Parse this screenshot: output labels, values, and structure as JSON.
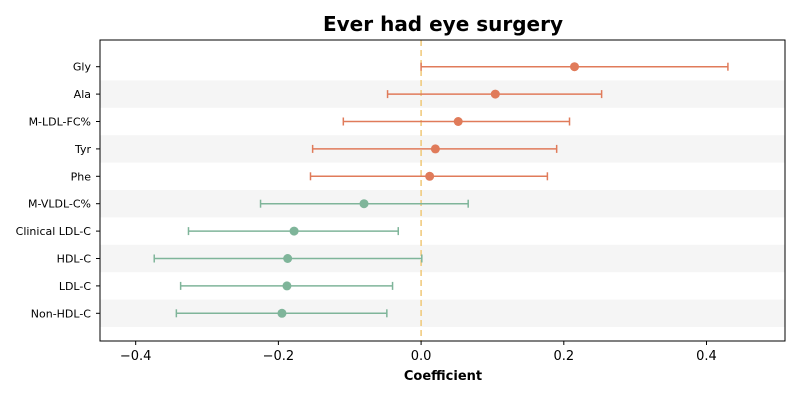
{
  "chart_data": {
    "type": "scatter",
    "title": "Ever had eye surgery",
    "xlabel": "Coefficient",
    "ylabel": "",
    "xlim": [
      -0.45,
      0.51
    ],
    "xticks": [
      -0.4,
      -0.2,
      0.0,
      0.2,
      0.4
    ],
    "xtick_labels": [
      "−0.4",
      "−0.2",
      "0.0",
      "0.2",
      "0.4"
    ],
    "reference_line": {
      "x": 0.0,
      "style": "dashed",
      "color": "#f0c878"
    },
    "alternating_row_shading": true,
    "colors": {
      "positive": "#e07b5a",
      "negative": "#7fb59a",
      "row_shade": "#f5f5f5"
    },
    "points": [
      {
        "label": "Gly",
        "coef": 0.215,
        "lower": 0.0,
        "upper": 0.43
      },
      {
        "label": "Ala",
        "coef": 0.104,
        "lower": -0.047,
        "upper": 0.253
      },
      {
        "label": "M-LDL-FC%",
        "coef": 0.052,
        "lower": -0.109,
        "upper": 0.208
      },
      {
        "label": "Tyr",
        "coef": 0.02,
        "lower": -0.152,
        "upper": 0.19
      },
      {
        "label": "Phe",
        "coef": 0.012,
        "lower": -0.155,
        "upper": 0.177
      },
      {
        "label": "M-VLDL-C%",
        "coef": -0.08,
        "lower": -0.225,
        "upper": 0.066
      },
      {
        "label": "Clinical LDL-C",
        "coef": -0.178,
        "lower": -0.326,
        "upper": -0.032
      },
      {
        "label": "HDL-C",
        "coef": -0.187,
        "lower": -0.374,
        "upper": 0.001
      },
      {
        "label": "LDL-C",
        "coef": -0.188,
        "lower": -0.337,
        "upper": -0.04
      },
      {
        "label": "Non-HDL-C",
        "coef": -0.195,
        "lower": -0.343,
        "upper": -0.048
      }
    ]
  }
}
